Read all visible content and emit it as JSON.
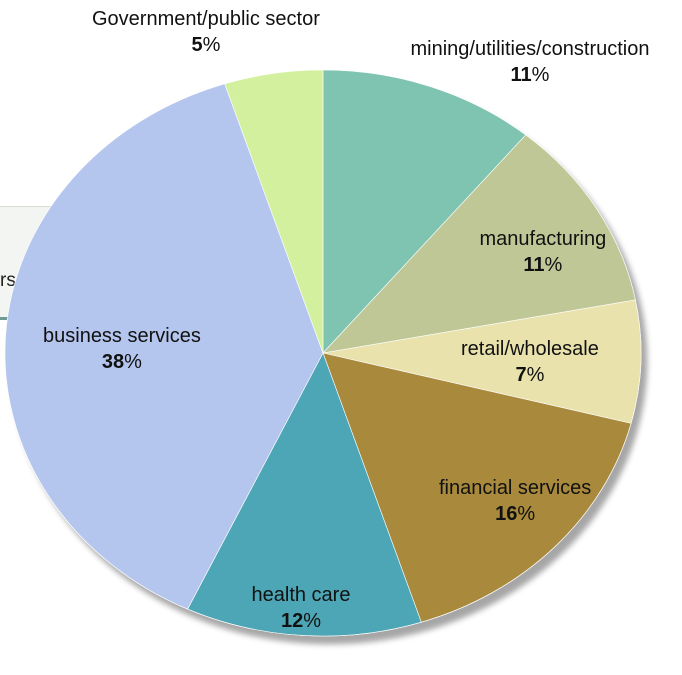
{
  "background_fragment": {
    "text": "rs"
  },
  "chart_data": {
    "type": "pie",
    "title": "",
    "slices": [
      {
        "category": "mining/utilities/construction",
        "value": 11,
        "color": "#7fc4b1"
      },
      {
        "category": "manufacturing",
        "value": 11,
        "color": "#bfc796"
      },
      {
        "category": "retail/wholesale",
        "value": 7,
        "color": "#e9e2ad"
      },
      {
        "category": "financial services",
        "value": 16,
        "color": "#a98a3d"
      },
      {
        "category": "health care",
        "value": 12,
        "color": "#4ea6b5"
      },
      {
        "category": "business services",
        "value": 38,
        "color": "#b5c6ee"
      },
      {
        "category": "Government/public sector",
        "value": 5,
        "color": "#d3f09e"
      }
    ],
    "percent_sign": "%",
    "start_angle_deg": 0,
    "direction": "clockwise"
  }
}
